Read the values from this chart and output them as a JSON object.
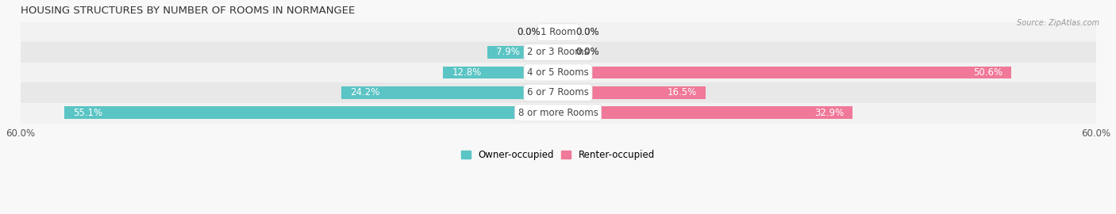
{
  "title": "HOUSING STRUCTURES BY NUMBER OF ROOMS IN NORMANGEE",
  "source": "Source: ZipAtlas.com",
  "categories": [
    "1 Room",
    "2 or 3 Rooms",
    "4 or 5 Rooms",
    "6 or 7 Rooms",
    "8 or more Rooms"
  ],
  "owner_values": [
    0.0,
    7.9,
    12.8,
    24.2,
    55.1
  ],
  "renter_values": [
    0.0,
    0.0,
    50.6,
    16.5,
    32.9
  ],
  "owner_color": "#5bc4c4",
  "renter_color": "#f07898",
  "xlim": 60.0,
  "bar_height": 0.62,
  "label_fontsize": 8.5,
  "title_fontsize": 9.5,
  "legend_fontsize": 8.5,
  "value_label_color": "#444444",
  "cat_label_color": "#444444",
  "value_label_inside_color": "#ffffff",
  "background_color": "#f8f8f8",
  "row_bg_even": "#f2f2f2",
  "row_bg_odd": "#e8e8e8",
  "row_border_color": "#cccccc"
}
